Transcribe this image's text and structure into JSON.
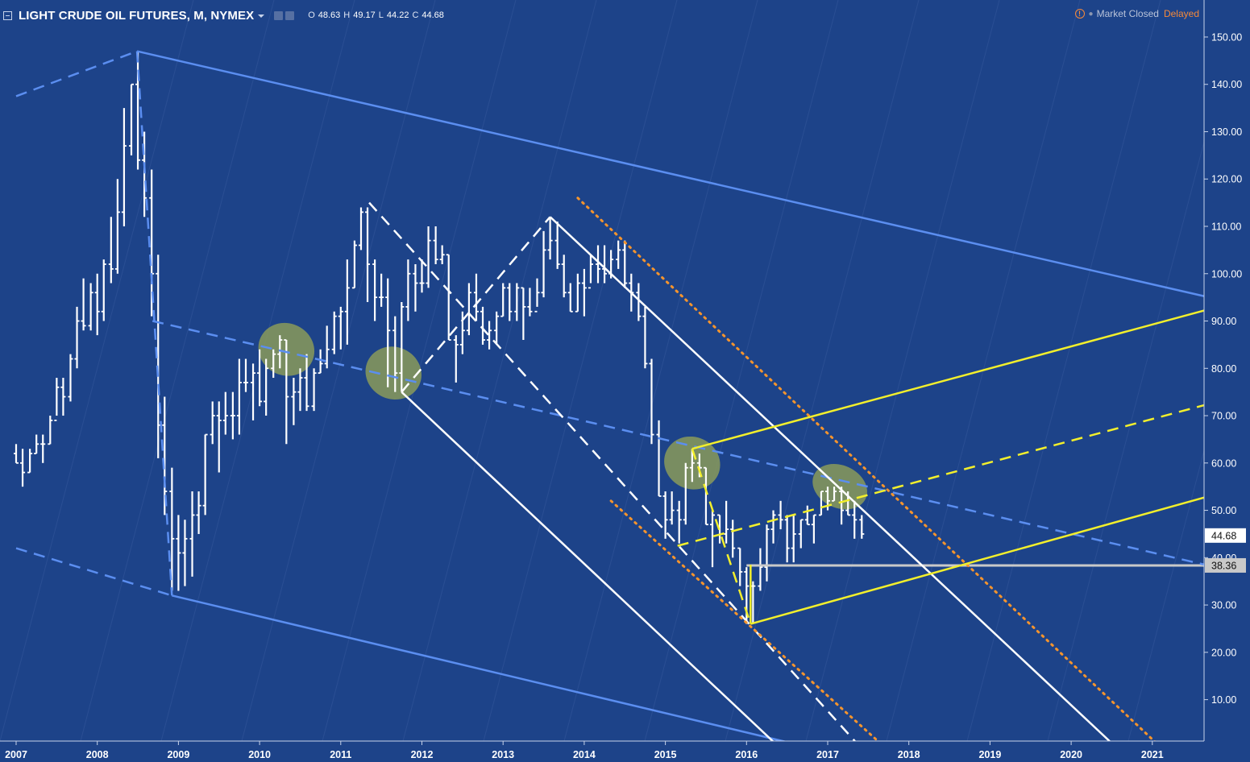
{
  "header": {
    "symbol": "LIGHT CRUDE OIL FUTURES, M, NYMEX",
    "ohlc": [
      {
        "k": "O",
        "v": "48.63"
      },
      {
        "k": "H",
        "v": "49.17"
      },
      {
        "k": "L",
        "v": "44.22"
      },
      {
        "k": "C",
        "v": "44.68"
      }
    ],
    "status": "Market Closed",
    "delayed": "Delayed",
    "warn_glyph": "!"
  },
  "colors": {
    "background": "#1d4389",
    "bars": "#ffffff",
    "channel_blue": "#5b8ef0",
    "yellow": "#f2ef2c",
    "orange": "#f5942d",
    "highlight": "#8a9a5b",
    "support": "#c9c9c9"
  },
  "chart_data": {
    "type": "ohlc",
    "interval": "monthly",
    "y_ticks": [
      "150.00",
      "140.00",
      "130.00",
      "120.00",
      "110.00",
      "100.00",
      "90.00",
      "80.00",
      "70.00",
      "60.00",
      "50.00",
      "40.00",
      "30.00",
      "20.00",
      "10.00"
    ],
    "x_ticks": [
      "2007",
      "2008",
      "2009",
      "2010",
      "2011",
      "2012",
      "2013",
      "2014",
      "2015",
      "2016",
      "2017",
      "2018",
      "2019",
      "2020",
      "2021"
    ],
    "ylim": [
      0,
      155
    ],
    "xlim": [
      2007.0,
      2021.7
    ],
    "price_labels": [
      {
        "value": 44.68,
        "text": "44.68"
      },
      {
        "value": 38.36,
        "text": "38.36"
      }
    ],
    "bars": [
      [
        2007.0,
        62,
        60,
        64,
        60
      ],
      [
        2007.08,
        60,
        55,
        63,
        58
      ],
      [
        2007.17,
        58,
        58,
        63,
        62
      ],
      [
        2007.25,
        62,
        62,
        66,
        64
      ],
      [
        2007.33,
        64,
        60,
        66,
        64
      ],
      [
        2007.42,
        64,
        64,
        70,
        69
      ],
      [
        2007.5,
        69,
        70,
        78,
        76
      ],
      [
        2007.58,
        76,
        70,
        78,
        74
      ],
      [
        2007.67,
        74,
        73,
        83,
        82
      ],
      [
        2007.75,
        82,
        80,
        93,
        90
      ],
      [
        2007.83,
        90,
        88,
        99,
        89
      ],
      [
        2007.92,
        89,
        88,
        98,
        96
      ],
      [
        2008.0,
        96,
        87,
        100,
        92
      ],
      [
        2008.08,
        92,
        90,
        103,
        102
      ],
      [
        2008.17,
        102,
        98,
        112,
        101
      ],
      [
        2008.25,
        101,
        100,
        120,
        113
      ],
      [
        2008.33,
        113,
        110,
        135,
        127
      ],
      [
        2008.42,
        127,
        125,
        140,
        140
      ],
      [
        2008.5,
        140,
        122,
        147,
        124
      ],
      [
        2008.58,
        124,
        112,
        130,
        116
      ],
      [
        2008.67,
        116,
        91,
        122,
        100
      ],
      [
        2008.75,
        100,
        61,
        104,
        68
      ],
      [
        2008.83,
        68,
        49,
        74,
        54
      ],
      [
        2008.92,
        54,
        33,
        59,
        44
      ],
      [
        2009.0,
        44,
        33,
        49,
        41
      ],
      [
        2009.08,
        41,
        34,
        48,
        44
      ],
      [
        2009.17,
        44,
        36,
        54,
        49
      ],
      [
        2009.25,
        49,
        45,
        54,
        51
      ],
      [
        2009.33,
        51,
        49,
        66,
        66
      ],
      [
        2009.42,
        66,
        64,
        73,
        70
      ],
      [
        2009.5,
        70,
        58,
        73,
        69
      ],
      [
        2009.58,
        69,
        66,
        75,
        70
      ],
      [
        2009.67,
        70,
        65,
        75,
        70
      ],
      [
        2009.75,
        70,
        66,
        82,
        77
      ],
      [
        2009.83,
        77,
        75,
        82,
        77
      ],
      [
        2009.92,
        77,
        69,
        81,
        79
      ],
      [
        2010.0,
        79,
        72,
        84,
        73
      ],
      [
        2010.08,
        73,
        70,
        82,
        80
      ],
      [
        2010.17,
        80,
        78,
        84,
        83
      ],
      [
        2010.25,
        83,
        80,
        87,
        86
      ],
      [
        2010.33,
        86,
        64,
        86,
        74
      ],
      [
        2010.42,
        74,
        68,
        78,
        75
      ],
      [
        2010.5,
        75,
        71,
        80,
        78
      ],
      [
        2010.58,
        78,
        71,
        83,
        72
      ],
      [
        2010.67,
        72,
        71,
        80,
        79
      ],
      [
        2010.75,
        79,
        79,
        84,
        81
      ],
      [
        2010.83,
        81,
        80,
        89,
        84
      ],
      [
        2010.92,
        84,
        83,
        92,
        91
      ],
      [
        2011.0,
        91,
        84,
        93,
        92
      ],
      [
        2011.08,
        92,
        85,
        103,
        97
      ],
      [
        2011.17,
        97,
        97,
        107,
        106
      ],
      [
        2011.25,
        106,
        105,
        114,
        113
      ],
      [
        2011.33,
        113,
        94,
        114,
        102
      ],
      [
        2011.42,
        102,
        90,
        103,
        95
      ],
      [
        2011.5,
        95,
        93,
        100,
        95
      ],
      [
        2011.58,
        95,
        76,
        99,
        88
      ],
      [
        2011.67,
        88,
        75,
        91,
        79
      ],
      [
        2011.75,
        79,
        75,
        94,
        93
      ],
      [
        2011.83,
        93,
        90,
        103,
        100
      ],
      [
        2011.92,
        100,
        92,
        102,
        98
      ],
      [
        2012.0,
        98,
        96,
        103,
        98
      ],
      [
        2012.08,
        98,
        97,
        110,
        107
      ],
      [
        2012.17,
        107,
        102,
        110,
        103
      ],
      [
        2012.25,
        103,
        102,
        106,
        104
      ],
      [
        2012.33,
        104,
        86,
        104,
        86
      ],
      [
        2012.42,
        86,
        77,
        87,
        85
      ],
      [
        2012.5,
        85,
        83,
        92,
        88
      ],
      [
        2012.58,
        88,
        87,
        98,
        96
      ],
      [
        2012.67,
        96,
        90,
        100,
        92
      ],
      [
        2012.75,
        92,
        85,
        93,
        86
      ],
      [
        2012.83,
        86,
        84,
        90,
        88
      ],
      [
        2012.92,
        88,
        85,
        92,
        91
      ],
      [
        2013.0,
        91,
        91,
        98,
        97
      ],
      [
        2013.08,
        97,
        90,
        98,
        92
      ],
      [
        2013.17,
        92,
        90,
        98,
        97
      ],
      [
        2013.25,
        97,
        86,
        97,
        93
      ],
      [
        2013.33,
        93,
        91,
        97,
        92
      ],
      [
        2013.42,
        92,
        93,
        99,
        96
      ],
      [
        2013.5,
        96,
        95,
        109,
        105
      ],
      [
        2013.58,
        105,
        103,
        112,
        107
      ],
      [
        2013.67,
        107,
        101,
        111,
        102
      ],
      [
        2013.75,
        102,
        95,
        104,
        96
      ],
      [
        2013.83,
        96,
        92,
        98,
        92
      ],
      [
        2013.92,
        92,
        92,
        100,
        98
      ],
      [
        2014.0,
        98,
        91,
        101,
        97
      ],
      [
        2014.08,
        97,
        98,
        104,
        102
      ],
      [
        2014.17,
        102,
        98,
        106,
        101
      ],
      [
        2014.25,
        101,
        98,
        106,
        100
      ],
      [
        2014.33,
        100,
        99,
        105,
        103
      ],
      [
        2014.42,
        103,
        101,
        107,
        105
      ],
      [
        2014.5,
        105,
        97,
        107,
        98
      ],
      [
        2014.58,
        98,
        92,
        100,
        96
      ],
      [
        2014.67,
        96,
        90,
        98,
        91
      ],
      [
        2014.75,
        91,
        80,
        93,
        81
      ],
      [
        2014.83,
        81,
        64,
        82,
        66
      ],
      [
        2014.92,
        66,
        53,
        69,
        53
      ],
      [
        2015.0,
        53,
        44,
        54,
        48
      ],
      [
        2015.08,
        48,
        47,
        54,
        50
      ],
      [
        2015.17,
        50,
        43,
        52,
        48
      ],
      [
        2015.25,
        48,
        47,
        60,
        59
      ],
      [
        2015.33,
        59,
        56,
        63,
        60
      ],
      [
        2015.42,
        60,
        57,
        62,
        59
      ],
      [
        2015.5,
        59,
        47,
        59,
        47
      ],
      [
        2015.58,
        47,
        38,
        50,
        49
      ],
      [
        2015.67,
        49,
        43,
        49,
        45
      ],
      [
        2015.75,
        45,
        43,
        52,
        46
      ],
      [
        2015.83,
        46,
        40,
        48,
        42
      ],
      [
        2015.92,
        42,
        34,
        42,
        37
      ],
      [
        2016.0,
        37,
        26,
        38,
        34
      ],
      [
        2016.08,
        34,
        26,
        35,
        34
      ],
      [
        2016.17,
        34,
        33,
        42,
        38
      ],
      [
        2016.25,
        38,
        35,
        47,
        46
      ],
      [
        2016.33,
        46,
        43,
        50,
        49
      ],
      [
        2016.42,
        49,
        46,
        52,
        48
      ],
      [
        2016.5,
        48,
        39,
        49,
        42
      ],
      [
        2016.58,
        42,
        39,
        49,
        45
      ],
      [
        2016.67,
        45,
        42,
        48,
        48
      ],
      [
        2016.75,
        48,
        47,
        51,
        47
      ],
      [
        2016.83,
        47,
        43,
        49,
        49
      ],
      [
        2016.92,
        49,
        49,
        54,
        54
      ],
      [
        2017.0,
        54,
        50,
        55,
        52
      ],
      [
        2017.08,
        52,
        52,
        55,
        54
      ],
      [
        2017.17,
        54,
        47,
        55,
        50
      ],
      [
        2017.25,
        50,
        49,
        54,
        49
      ],
      [
        2017.33,
        49,
        44,
        52,
        48
      ],
      [
        2017.42,
        48,
        44,
        49,
        45
      ]
    ],
    "annotations": {
      "lines": [
        {
          "style": "solid",
          "color": "channel_blue",
          "from": [
            2007.0,
            137.5
          ],
          "to": [
            2008.49,
            147
          ],
          "dash": true
        },
        {
          "style": "solid",
          "color": "channel_blue",
          "from": [
            2008.49,
            147
          ],
          "to": [
            2021.7,
            95
          ]
        },
        {
          "style": "solid",
          "color": "channel_blue",
          "from": [
            2008.92,
            32
          ],
          "to": [
            2016.75,
            0
          ]
        },
        {
          "style": "dash",
          "color": "channel_blue",
          "from": [
            2007.0,
            42
          ],
          "to": [
            2008.92,
            32
          ]
        },
        {
          "style": "dash",
          "color": "channel_blue",
          "from": [
            2008.49,
            147
          ],
          "to": [
            2008.92,
            32
          ]
        },
        {
          "style": "dash",
          "color": "channel_blue",
          "from": [
            2008.68,
            90
          ],
          "to": [
            2021.7,
            38.3
          ]
        },
        {
          "style": "dash",
          "color": "bars",
          "from": [
            2011.35,
            115
          ],
          "to": [
            2017.4,
            0
          ]
        },
        {
          "style": "solid",
          "color": "bars",
          "from": [
            2011.75,
            75
          ],
          "to": [
            2013.58,
            112
          ],
          "dash": true
        },
        {
          "style": "solid",
          "color": "bars",
          "from": [
            2011.75,
            75
          ],
          "to": [
            2016.4,
            0
          ]
        },
        {
          "style": "solid",
          "color": "bars",
          "from": [
            2013.58,
            112
          ],
          "to": [
            2020.55,
            0
          ]
        },
        {
          "style": "dot",
          "color": "orange",
          "from": [
            2013.92,
            116
          ],
          "to": [
            2021.1,
            0
          ]
        },
        {
          "style": "dot",
          "color": "orange",
          "from": [
            2014.33,
            52
          ],
          "to": [
            2017.7,
            0
          ]
        },
        {
          "style": "solid",
          "color": "yellow",
          "from": [
            2015.33,
            63
          ],
          "to": [
            2021.7,
            92.5
          ]
        },
        {
          "style": "solid",
          "color": "yellow",
          "from": [
            2016.05,
            26
          ],
          "to": [
            2021.7,
            53
          ]
        },
        {
          "style": "solid",
          "color": "yellow",
          "from": [
            2016.05,
            26
          ],
          "to": [
            2016.05,
            38.5
          ]
        },
        {
          "style": "dash",
          "color": "yellow",
          "from": [
            2015.15,
            42.5
          ],
          "to": [
            2021.7,
            72.5
          ]
        },
        {
          "style": "dash",
          "color": "yellow",
          "from": [
            2015.33,
            63
          ],
          "to": [
            2016.05,
            26
          ]
        }
      ],
      "support": {
        "value": 38.36,
        "from": 2016.0
      },
      "highlights": [
        {
          "x": 2010.33,
          "y": 84,
          "rx": 0.35,
          "ry": 5.5
        },
        {
          "x": 2011.65,
          "y": 79,
          "rx": 0.35,
          "ry": 5.5
        },
        {
          "x": 2015.33,
          "y": 60,
          "rx": 0.35,
          "ry": 5.5
        },
        {
          "x": 2017.15,
          "y": 55,
          "rx": 0.35,
          "ry": 4.5
        }
      ]
    }
  }
}
